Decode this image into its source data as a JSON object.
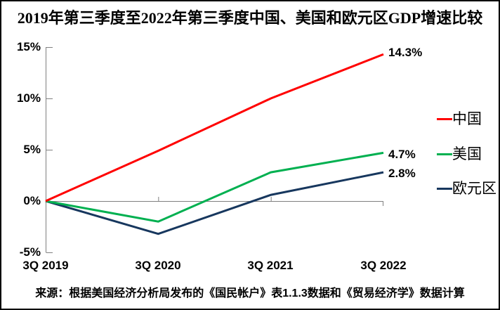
{
  "chart_data": {
    "type": "line",
    "title": "2019年第三季度至2022年第三季度中国、美国和欧元区GDP增速比较",
    "source": "来源：根据美国经济分析局发布的《国民帐户》表1.1.3数据和《贸易经济学》数据计算",
    "categories": [
      "3Q 2019",
      "3Q 2020",
      "3Q 2021",
      "3Q 2022"
    ],
    "series": [
      {
        "name": "中国",
        "color": "#ff0000",
        "values": [
          0,
          4.9,
          10.0,
          14.3
        ],
        "end_label": "14.3%"
      },
      {
        "name": "美国",
        "color": "#00b050",
        "values": [
          0,
          -2.0,
          2.8,
          4.7
        ],
        "end_label": "4.7%"
      },
      {
        "name": "欧元区",
        "color": "#17375e",
        "values": [
          0,
          -3.2,
          0.6,
          2.8
        ],
        "end_label": "2.8%"
      }
    ],
    "y_ticks": [
      {
        "label": "15%",
        "value": 15
      },
      {
        "label": "10%",
        "value": 10
      },
      {
        "label": "5%",
        "value": 5
      },
      {
        "label": "0%",
        "value": 0
      },
      {
        "label": "-5%",
        "value": -5
      }
    ],
    "ylim": [
      -5,
      15
    ],
    "xlabel": "",
    "ylabel": "",
    "grid": "zero-line-only",
    "legend_position": "right",
    "axis_color": "#808080",
    "text_color": "#000000"
  }
}
